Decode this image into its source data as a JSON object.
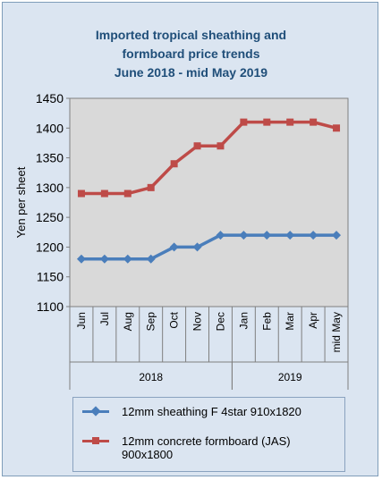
{
  "chart_data": {
    "type": "line",
    "title": [
      "Imported tropical sheathing and",
      "formboard price trends",
      "June 2018 - mid May 2019"
    ],
    "ylabel": "Yen per sheet",
    "xlabel": "",
    "ylim": [
      1100,
      1450
    ],
    "yticks": [
      1100,
      1150,
      1200,
      1250,
      1300,
      1350,
      1400,
      1450
    ],
    "grid": false,
    "legend_position": "bottom",
    "categories": [
      "Jun",
      "Jul",
      "Aug",
      "Sep",
      "Oct",
      "Nov",
      "Dec",
      "Jan",
      "Feb",
      "Mar",
      "Apr",
      "mid May"
    ],
    "year_groups": [
      {
        "label": "2018",
        "start": 0,
        "end": 6
      },
      {
        "label": "2019",
        "start": 7,
        "end": 11
      }
    ],
    "series": [
      {
        "name": "12mm sheathing F 4star 910x1820",
        "marker": "diamond",
        "color": "#4a7ebb",
        "values": [
          1180,
          1180,
          1180,
          1180,
          1200,
          1200,
          1220,
          1220,
          1220,
          1220,
          1220,
          1220
        ]
      },
      {
        "name": "12mm concrete formboard (JAS) 900x1800",
        "marker": "square",
        "color": "#be4b48",
        "values": [
          1290,
          1290,
          1290,
          1300,
          1340,
          1370,
          1370,
          1410,
          1410,
          1410,
          1410,
          1400
        ]
      }
    ],
    "colors": {
      "plot_background": "#d9d9d9",
      "chart_background": "#dbe5f1",
      "title": "#1f4e79"
    }
  }
}
